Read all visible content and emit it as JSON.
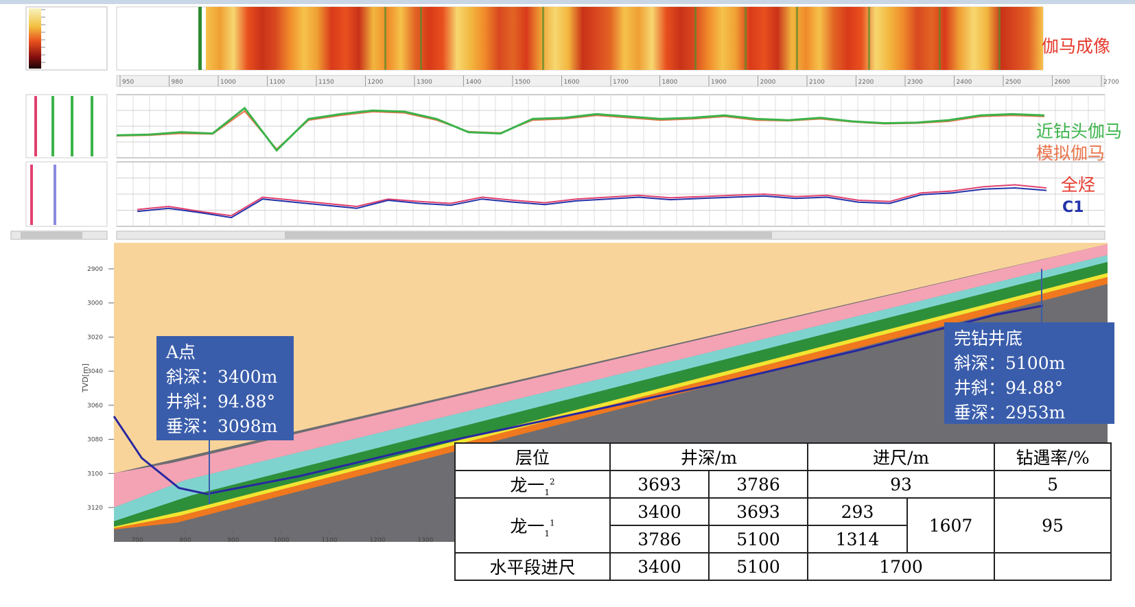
{
  "colors": {
    "gamma_green": "#3cb34a",
    "sim_gamma": "#e8734a",
    "total_gas": "#e0406e",
    "c1": "#2233aa",
    "callout_bg": "#3a5dab",
    "layer_tan": "#f9d49a",
    "layer_pink": "#f4a3b4",
    "layer_cyan": "#7fd3cf",
    "layer_green": "#2e8f3a",
    "layer_yellow": "#f2e531",
    "layer_orange": "#f0781e",
    "basement_gray": "#6d6d72"
  },
  "labels": {
    "gamma_image": "伽马成像",
    "near_bit_gamma": "近钻头伽马",
    "sim_gamma": "模拟伽马",
    "total_gas": "全烃",
    "c1": "C1"
  },
  "callouts": {
    "a_point": {
      "title": "A点",
      "md": "斜深：3400m",
      "inc": "井斜：94.88°",
      "tvd": "垂深：3098m"
    },
    "td": {
      "title": "完钻井底",
      "md": "斜深：5100m",
      "inc": "井斜：94.88°",
      "tvd": "垂深：2953m"
    }
  },
  "table": {
    "headers": {
      "layer": "层位",
      "depth": "井深/m",
      "footage": "进尺/m",
      "rate": "钻遇率/%"
    },
    "rows": {
      "r1": {
        "layer": "龙一",
        "sub": "1",
        "sup": "2",
        "from": "3693",
        "to": "3786",
        "footage": "93",
        "rate": "5"
      },
      "r2": {
        "layer": "龙一",
        "sub": "1",
        "sup": "1",
        "from1": "3400",
        "to1": "3693",
        "foot1": "293",
        "from2": "3786",
        "to2": "5100",
        "foot2": "1314",
        "total": "1607",
        "rate": "95"
      },
      "r3": {
        "layer": "水平段进尺",
        "from": "3400",
        "to": "5100",
        "footage": "1700",
        "rate": ""
      }
    }
  },
  "chart_data": [
    {
      "type": "heatmap",
      "title": "伽马成像",
      "x_ticks": [
        "950",
        "980",
        "1000",
        "1100",
        "1150",
        "1200",
        "1300",
        "1400",
        "1500",
        "1600",
        "1700",
        "1800",
        "1900",
        "2000",
        "2100",
        "2200",
        "2300",
        "2400",
        "2500",
        "2600",
        "2700"
      ]
    },
    {
      "type": "line",
      "series": [
        {
          "name": "近钻头伽马",
          "values": [
            0.35,
            0.36,
            0.4,
            0.38,
            0.8,
            0.1,
            0.62,
            0.7,
            0.76,
            0.74,
            0.62,
            0.4,
            0.38,
            0.62,
            0.64,
            0.7,
            0.66,
            0.62,
            0.64,
            0.68,
            0.62,
            0.6,
            0.64,
            0.58,
            0.55,
            0.56,
            0.6,
            0.68,
            0.7,
            0.68
          ]
        },
        {
          "name": "模拟伽马",
          "values": [
            0.34,
            0.35,
            0.38,
            0.37,
            0.75,
            0.12,
            0.6,
            0.68,
            0.74,
            0.72,
            0.6,
            0.41,
            0.39,
            0.6,
            0.62,
            0.68,
            0.64,
            0.6,
            0.62,
            0.66,
            0.6,
            0.59,
            0.62,
            0.57,
            0.54,
            0.55,
            0.58,
            0.66,
            0.68,
            0.66
          ]
        }
      ]
    },
    {
      "type": "line",
      "series": [
        {
          "name": "全烃",
          "values": [
            0.25,
            0.3,
            0.22,
            0.15,
            0.45,
            0.4,
            0.35,
            0.3,
            0.42,
            0.38,
            0.35,
            0.45,
            0.4,
            0.36,
            0.42,
            0.45,
            0.48,
            0.44,
            0.46,
            0.48,
            0.5,
            0.46,
            0.48,
            0.4,
            0.38,
            0.52,
            0.55,
            0.62,
            0.65,
            0.6
          ]
        },
        {
          "name": "C1",
          "values": [
            0.22,
            0.27,
            0.2,
            0.12,
            0.42,
            0.37,
            0.32,
            0.27,
            0.4,
            0.35,
            0.32,
            0.42,
            0.37,
            0.33,
            0.39,
            0.42,
            0.45,
            0.41,
            0.43,
            0.45,
            0.47,
            0.43,
            0.45,
            0.37,
            0.35,
            0.49,
            0.52,
            0.58,
            0.6,
            0.56
          ]
        }
      ]
    },
    {
      "type": "area",
      "ylabel": "TVD[m]",
      "x_ticks": [
        "700",
        "800",
        "900",
        "1000",
        "1100",
        "1200",
        "1300"
      ],
      "y_ticks": [
        "2900",
        "3000",
        "3020",
        "3040",
        "3060",
        "3080",
        "3100",
        "3120"
      ],
      "layers": [
        "tan",
        "pink",
        "cyan",
        "green",
        "yellow",
        "orange",
        "gray"
      ],
      "well_path": [
        [
          0.0,
          0.58
        ],
        [
          0.03,
          0.72
        ],
        [
          0.07,
          0.82
        ],
        [
          0.1,
          0.84
        ],
        [
          0.2,
          0.78
        ],
        [
          0.35,
          0.67
        ],
        [
          0.5,
          0.57
        ],
        [
          0.65,
          0.47
        ],
        [
          0.8,
          0.36
        ],
        [
          0.95,
          0.24
        ],
        [
          1.0,
          0.21
        ]
      ]
    }
  ]
}
